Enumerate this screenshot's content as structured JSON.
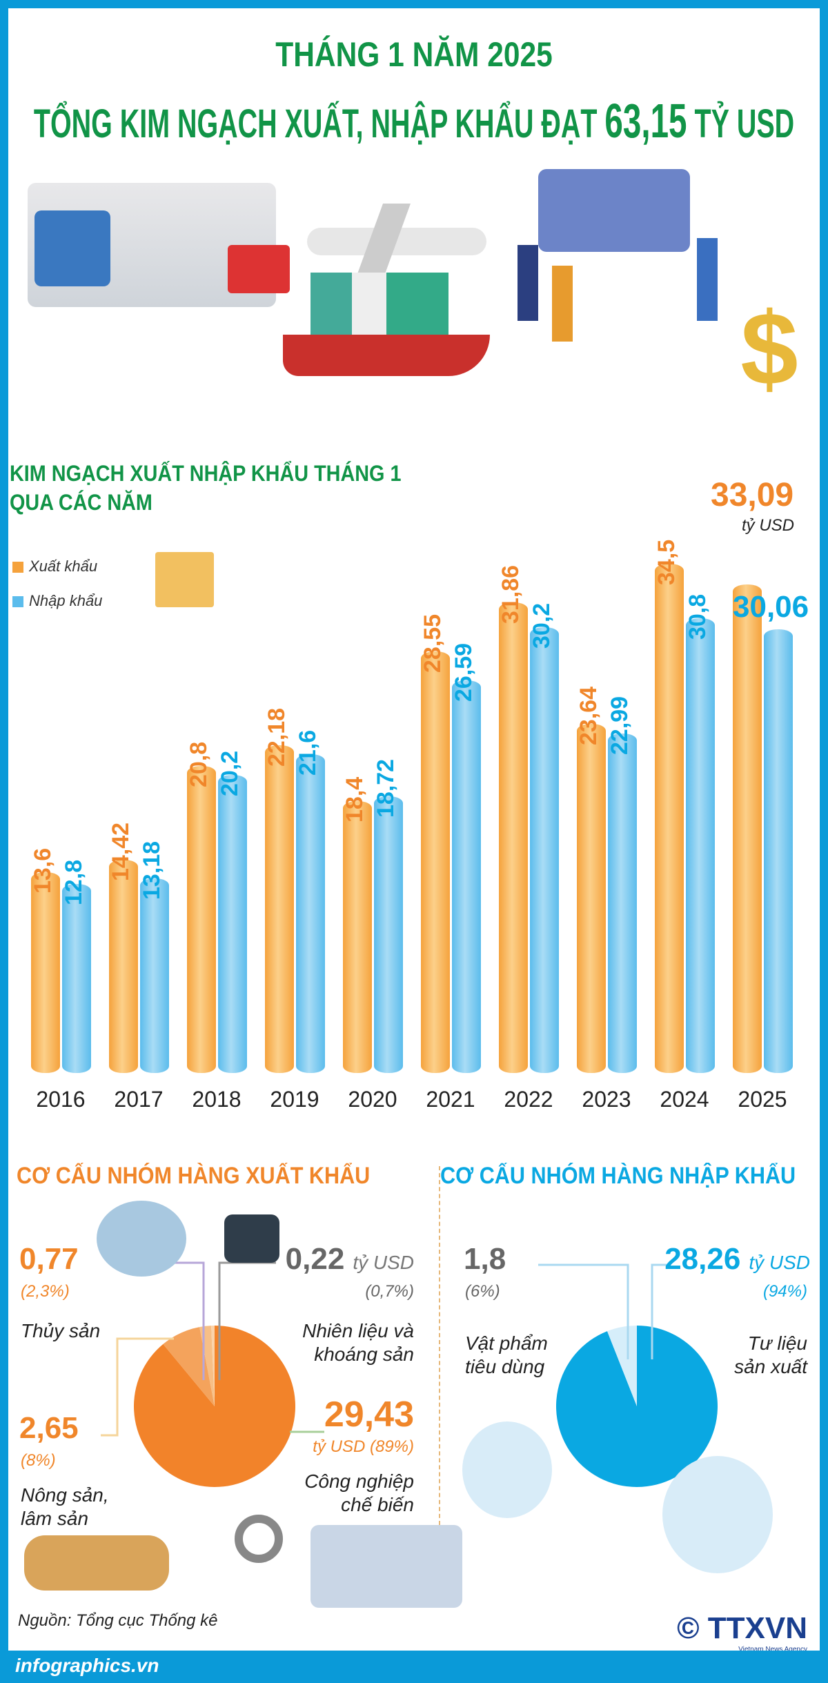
{
  "header": {
    "line1": "THÁNG 1 NĂM 2025",
    "line2_prefix": "TỔNG KIM NGẠCH XUẤT, NHẬP KHẨU ĐẠT",
    "line2_value": "63,15",
    "line2_suffix": "TỶ USD"
  },
  "colors": {
    "export": "#f5a23c",
    "import": "#5bbcec",
    "title_green": "#119447",
    "frame_blue": "#0a9ad8",
    "export_pie": "#f2832a",
    "import_pie": "#0aa8e2"
  },
  "chart_data": [
    {
      "type": "bar",
      "title": "KIM NGẠCH XUẤT NHẬP KHẨU THÁNG 1 QUA CÁC NĂM",
      "categories": [
        "2016",
        "2017",
        "2018",
        "2019",
        "2020",
        "2021",
        "2022",
        "2023",
        "2024",
        "2025"
      ],
      "series": [
        {
          "name": "Xuất khẩu",
          "values": [
            13.6,
            14.42,
            20.8,
            22.18,
            18.4,
            28.55,
            31.86,
            23.64,
            34.5,
            33.09
          ]
        },
        {
          "name": "Nhập khẩu",
          "values": [
            12.8,
            13.18,
            20.2,
            21.6,
            18.72,
            26.59,
            30.2,
            22.99,
            30.8,
            30.06
          ]
        }
      ],
      "labels": {
        "export": [
          "13,6",
          "14,42",
          "20,8",
          "22,18",
          "18,4",
          "28,55",
          "31,86",
          "23,64",
          "34,5",
          "33,09"
        ],
        "import": [
          "12,8",
          "13,18",
          "20,2",
          "21,6",
          "18,72",
          "26,59",
          "30,2",
          "22,99",
          "30,8",
          "30,06"
        ]
      },
      "unit": "tỷ USD",
      "legend": "top-left",
      "grid": false
    },
    {
      "type": "pie",
      "title": "CƠ CẤU NHÓM HÀNG XUẤT KHẨU",
      "unit": "tỷ USD",
      "slices": [
        {
          "name": "Công nghiệp chế biến",
          "value": 29.43,
          "value_label": "29,43",
          "pct": "(89%)"
        },
        {
          "name": "Nông sản, lâm sản",
          "value": 2.65,
          "value_label": "2,65",
          "pct": "(8%)"
        },
        {
          "name": "Thủy sản",
          "value": 0.77,
          "value_label": "0,77",
          "pct": "(2,3%)"
        },
        {
          "name": "Nhiên liệu và khoáng sản",
          "value": 0.22,
          "value_label": "0,22",
          "pct": "(0,7%)"
        }
      ]
    },
    {
      "type": "pie",
      "title": "CƠ CẤU NHÓM HÀNG NHẬP KHẨU",
      "unit": "tỷ USD",
      "slices": [
        {
          "name": "Tư liệu sản xuất",
          "value": 28.26,
          "value_label": "28,26",
          "pct": "(94%)"
        },
        {
          "name": "Vật phẩm tiêu dùng",
          "value": 1.8,
          "value_label": "1,8",
          "pct": "(6%)"
        }
      ]
    }
  ],
  "chart_title_line1": "KIM NGẠCH XUẤT NHẬP KHẨU THÁNG 1",
  "chart_title_line2": "QUA CÁC NĂM",
  "legend": {
    "export": "Xuất khẩu",
    "import": "Nhập khẩu"
  },
  "unit_label": "tỷ USD",
  "unit_label_paren": "tỷ USD (89%)",
  "pie_labels": {
    "thuy_san": "Thủy sản",
    "nhien_lieu_1": "Nhiên liệu và",
    "nhien_lieu_2": "khoáng sản",
    "nong_san_1": "Nông sản,",
    "nong_san_2": "lâm sản",
    "cn_1": "Công nghiệp",
    "cn_2": "chế biến",
    "vp_1": "Vật phẩm",
    "vp_2": "tiêu dùng",
    "tl_1": "Tư liệu",
    "tl_2": "sản xuất"
  },
  "source": "Nguồn: Tổng cục Thống kê",
  "footer": "infographics.vn",
  "logo": "TTXVN",
  "logo_sub": "Vietnam News Agency",
  "copyright": "©"
}
